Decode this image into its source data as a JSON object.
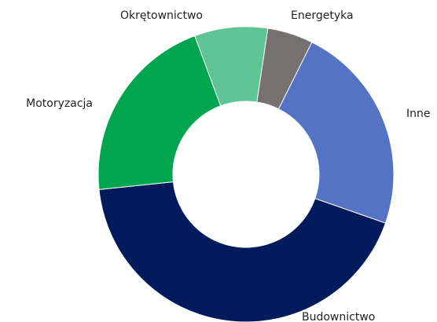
{
  "chart_data": {
    "type": "donut",
    "categories": [
      "Energetyka",
      "Inne",
      "Budownictwo",
      "Motoryzacja",
      "Okrętownictwo"
    ],
    "values": [
      5,
      23,
      43,
      21,
      8
    ],
    "colors": [
      "#767171",
      "#5473c4",
      "#001a5c",
      "#00a550",
      "#5ec493"
    ]
  }
}
